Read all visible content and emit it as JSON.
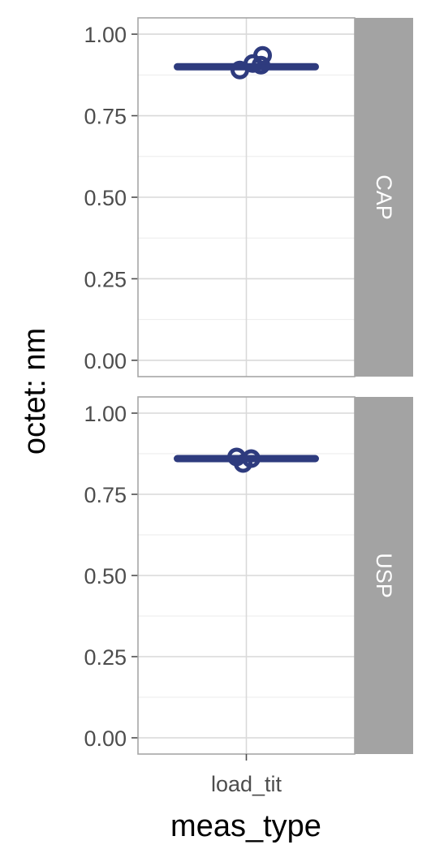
{
  "chart_data": {
    "type": "scatter",
    "xlabel": "meas_type",
    "ylabel": "octet: nm",
    "x_categories": [
      "load_tit"
    ],
    "ylim": [
      -0.05,
      1.05
    ],
    "y_ticks": [
      "0.00",
      "0.25",
      "0.50",
      "0.75",
      "1.00"
    ],
    "y_tick_values": [
      0,
      0.25,
      0.5,
      0.75,
      1.0
    ],
    "grid": true,
    "point_color": "#2e3b7e",
    "panels": [
      {
        "facet": "CAP",
        "mean": 0.9,
        "points": [
          {
            "x": "load_tit",
            "y": 0.89
          },
          {
            "x": "load_tit",
            "y": 0.91
          },
          {
            "x": "load_tit",
            "y": 0.905
          },
          {
            "x": "load_tit",
            "y": 0.935
          }
        ]
      },
      {
        "facet": "USP",
        "mean": 0.86,
        "points": [
          {
            "x": "load_tit",
            "y": 0.865
          },
          {
            "x": "load_tit",
            "y": 0.845
          },
          {
            "x": "load_tit",
            "y": 0.86
          }
        ]
      }
    ]
  }
}
